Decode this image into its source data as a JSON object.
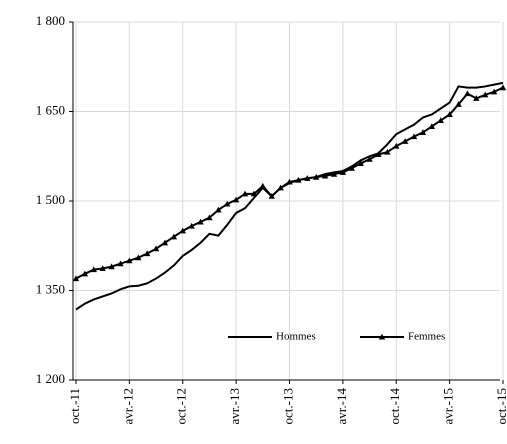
{
  "chart_data": {
    "type": "line",
    "categories": [
      "oct.-11",
      null,
      null,
      null,
      null,
      null,
      "avr.-12",
      null,
      null,
      null,
      null,
      null,
      "oct.-12",
      null,
      null,
      null,
      null,
      null,
      "avr.-13",
      null,
      null,
      null,
      null,
      null,
      "oct.-13",
      null,
      null,
      null,
      null,
      null,
      "avr.-14",
      null,
      null,
      null,
      null,
      null,
      "oct.-14",
      null,
      null,
      null,
      null,
      null,
      "avr.-15",
      null,
      null,
      null,
      null,
      null,
      "oct.-15"
    ],
    "series": [
      {
        "name": "Hommes",
        "color": "#000000",
        "marker": "none",
        "values": [
          1318,
          1328,
          1335,
          1340,
          1345,
          1352,
          1357,
          1358,
          1362,
          1370,
          1380,
          1392,
          1408,
          1418,
          1430,
          1445,
          1442,
          1460,
          1480,
          1488,
          1505,
          1522,
          1508,
          1522,
          1530,
          1535,
          1538,
          1540,
          1545,
          1548,
          1550,
          1558,
          1568,
          1575,
          1580,
          1595,
          1612,
          1620,
          1628,
          1640,
          1645,
          1655,
          1665,
          1692,
          1690,
          1690,
          1692,
          1695,
          1698
        ]
      },
      {
        "name": "Femmes",
        "color": "#000000",
        "marker": "triangle",
        "values": [
          1370,
          1378,
          1385,
          1387,
          1390,
          1395,
          1400,
          1405,
          1412,
          1420,
          1430,
          1440,
          1450,
          1458,
          1465,
          1472,
          1485,
          1495,
          1502,
          1512,
          1512,
          1525,
          1508,
          1522,
          1532,
          1535,
          1538,
          1540,
          1542,
          1545,
          1548,
          1555,
          1563,
          1570,
          1578,
          1582,
          1592,
          1600,
          1608,
          1615,
          1625,
          1635,
          1645,
          1662,
          1680,
          1672,
          1678,
          1683,
          1690
        ]
      }
    ],
    "ylim": [
      1200,
      1800
    ],
    "yticks": [
      {
        "value": 1200,
        "label": "1 200"
      },
      {
        "value": 1350,
        "label": "1 350"
      },
      {
        "value": 1500,
        "label": "1 500"
      },
      {
        "value": 1650,
        "label": "1 650"
      },
      {
        "value": 1800,
        "label": "1 800"
      }
    ],
    "grid": true,
    "legend": "bottom-right"
  }
}
